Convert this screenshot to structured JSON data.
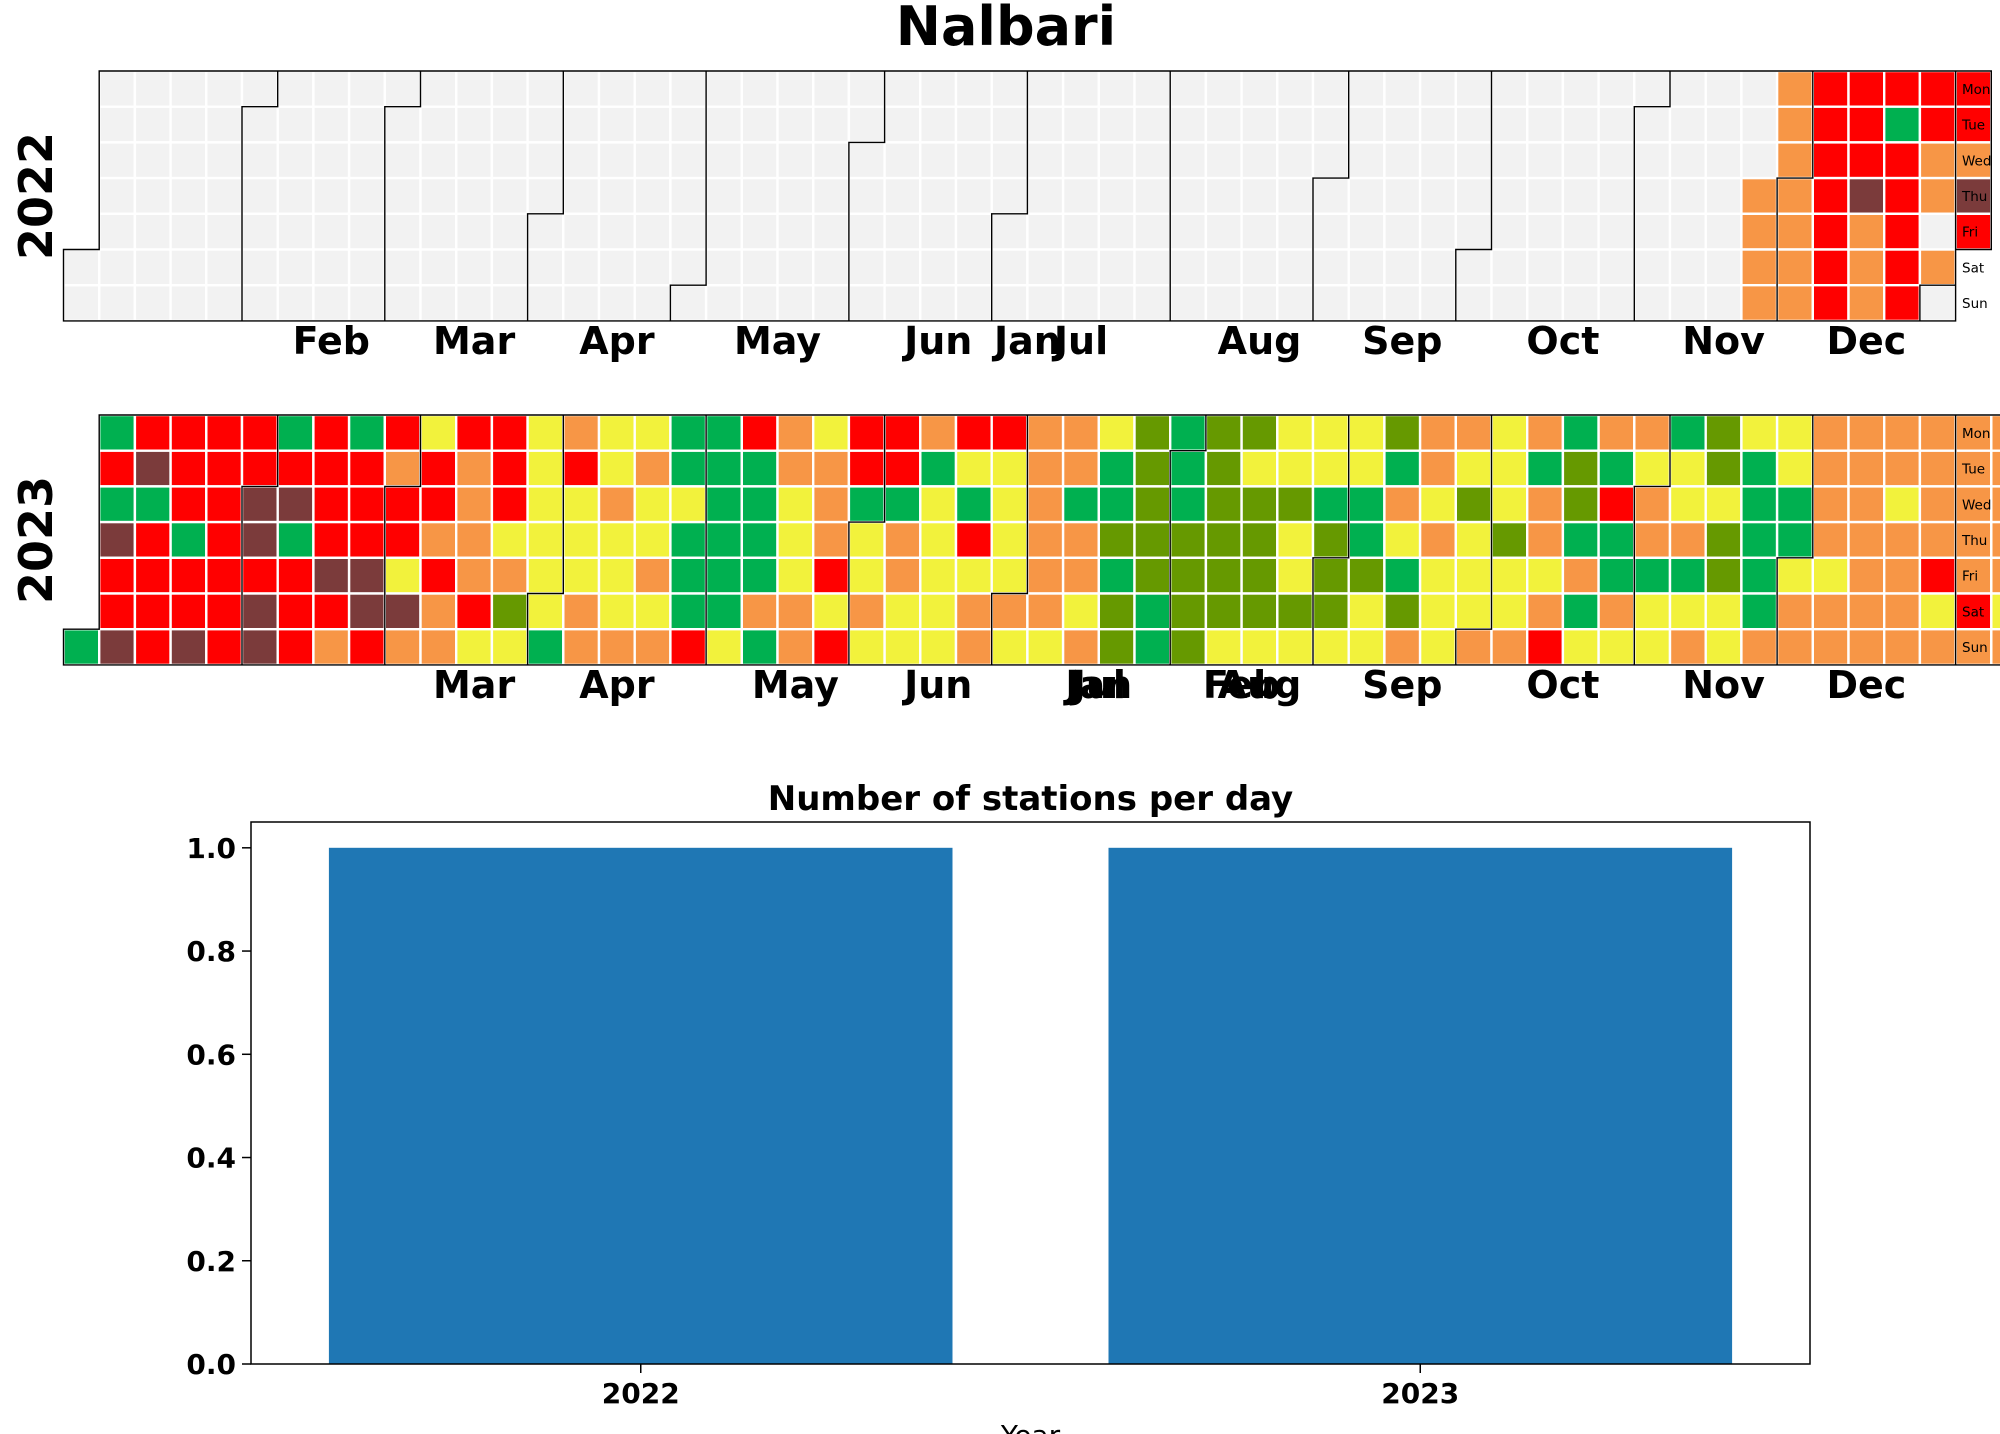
{
  "title": "Nalbari",
  "colors": {
    "bg": "#ffffff",
    "empty": "#f2f2f2",
    "cell_border": "#ffffff",
    "outline": "#000000",
    "bar": "#1f77b4",
    "palette": {
      "G": "#00b050",
      "L": "#669900",
      "Y": "#f2f23c",
      "O": "#f79646",
      "R": "#ff0000",
      "M": "#7b3b3b"
    }
  },
  "weekdays": [
    "Mon",
    "Tue",
    "Wed",
    "Thu",
    "Fri",
    "Sat",
    "Sun"
  ],
  "month_labels": [
    "Jan",
    "Feb",
    "Mar",
    "Apr",
    "May",
    "Jun",
    "Jul",
    "Aug",
    "Sep",
    "Oct",
    "Nov",
    "Dec"
  ],
  "calendars": [
    {
      "year": "2022",
      "first_day": "2022-01-01",
      "values": ".......................................................................................................................................................................................................................................................................................................................................OOOOOOOOOOORRRRRRRRRRMOOORGRRRRRRROO.O.RROMR"
    },
    {
      "year": "2023",
      "first_day": "2023-01-01",
      "values": "GGRGMRRMRMGRRRRRRRGRRMRRRRRRRRRMMRMMGRMGRRRRRRRMROGRRRMMRRORRYMOYRROROOROOOORYRRRYOLYYYYYYYGORYYYOOYYOYYYOYOYYOYOGGYGGGRGGGGGGYRGGGGOGOOYYYOOYOOORYRRRGYYOYRRGOOYYOGYYYYYRYGRYOORYYYYOYOOOOOOYOOGOOYOYGGLGLLLLLLLGGGGGLLLLLLLLLLYLYLLLLYYYLYYLYYYGLLLYYYGGLYYLGOYGLOOOYOYYYOYLYYYOYYYLYYOOGOOYORGLLGOGYOGRGGOYOYOOGYYGYYOGYOLLYLLYYYGGGGGOYYGGYOOOOOOYOOOOOOOOOOOYOOOOOOOORYOOOOOOROOOOOOYOOOOOYROOOORRRRORRRROROORRORRROOOOOOOOOO"
    }
  ],
  "bar_chart": {
    "title": "Number of stations per day",
    "xlabel": "Year",
    "categories": [
      "2022",
      "2023"
    ],
    "values": [
      1,
      1
    ],
    "ylim": [
      0,
      1.05
    ],
    "yticks": [
      "0.0",
      "0.2",
      "0.4",
      "0.6",
      "0.8",
      "1.0"
    ]
  },
  "chart_data": {
    "type": "bar",
    "title": "Number of stations per day",
    "xlabel": "Year",
    "ylabel": "",
    "categories": [
      "2022",
      "2023"
    ],
    "values": [
      1,
      1
    ],
    "ylim": [
      0,
      1.05
    ],
    "grid": false
  }
}
